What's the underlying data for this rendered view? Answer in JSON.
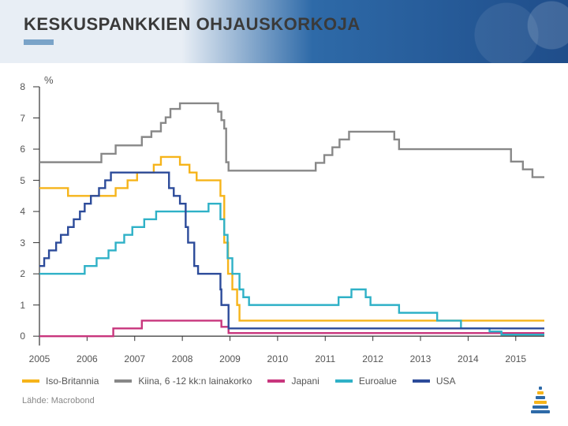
{
  "title": "KESKUSPANKKIEN OHJAUSKORKOJA",
  "accent_color": "#7aa3c8",
  "y_unit": "%",
  "source": "Lähde: Macrobond",
  "chart": {
    "type": "step-line",
    "background_color": "#ffffff",
    "grid_color": "#d7d7d7",
    "axis_color": "#333333",
    "tick_fontsize": 12,
    "label_fontsize": 12,
    "line_width": 2.4,
    "xlim": [
      2005,
      2015.6
    ],
    "ylim": [
      -0.3,
      8
    ],
    "yticks": [
      0,
      1,
      2,
      3,
      4,
      5,
      6,
      7,
      8
    ],
    "xticks": [
      2005,
      2006,
      2007,
      2008,
      2009,
      2010,
      2011,
      2012,
      2013,
      2014,
      2015
    ],
    "series": [
      {
        "name": "Iso-Britannia",
        "color": "#f6b41a",
        "data": [
          [
            2005.0,
            4.75
          ],
          [
            2005.6,
            4.5
          ],
          [
            2006.6,
            4.75
          ],
          [
            2006.85,
            5.0
          ],
          [
            2007.05,
            5.25
          ],
          [
            2007.4,
            5.5
          ],
          [
            2007.55,
            5.75
          ],
          [
            2007.95,
            5.5
          ],
          [
            2008.15,
            5.25
          ],
          [
            2008.3,
            5.0
          ],
          [
            2008.8,
            4.5
          ],
          [
            2008.88,
            3.0
          ],
          [
            2008.96,
            2.0
          ],
          [
            2009.05,
            1.5
          ],
          [
            2009.15,
            1.0
          ],
          [
            2009.2,
            0.5
          ],
          [
            2015.6,
            0.5
          ]
        ]
      },
      {
        "name": "Kiina, 6 -12 kk:n lainakorko",
        "color": "#888888",
        "data": [
          [
            2005.0,
            5.58
          ],
          [
            2006.3,
            5.85
          ],
          [
            2006.6,
            6.12
          ],
          [
            2007.15,
            6.39
          ],
          [
            2007.35,
            6.57
          ],
          [
            2007.55,
            6.84
          ],
          [
            2007.65,
            7.02
          ],
          [
            2007.75,
            7.29
          ],
          [
            2007.95,
            7.47
          ],
          [
            2008.75,
            7.2
          ],
          [
            2008.82,
            6.93
          ],
          [
            2008.88,
            6.66
          ],
          [
            2008.92,
            5.58
          ],
          [
            2008.97,
            5.31
          ],
          [
            2010.8,
            5.56
          ],
          [
            2010.98,
            5.81
          ],
          [
            2011.15,
            6.06
          ],
          [
            2011.3,
            6.31
          ],
          [
            2011.5,
            6.56
          ],
          [
            2012.45,
            6.31
          ],
          [
            2012.55,
            6.0
          ],
          [
            2014.9,
            5.6
          ],
          [
            2015.15,
            5.35
          ],
          [
            2015.35,
            5.1
          ],
          [
            2015.6,
            5.1
          ]
        ]
      },
      {
        "name": "Japani",
        "color": "#c8367d",
        "data": [
          [
            2005.0,
            0.0
          ],
          [
            2006.55,
            0.25
          ],
          [
            2007.15,
            0.5
          ],
          [
            2008.82,
            0.3
          ],
          [
            2008.97,
            0.1
          ],
          [
            2015.6,
            0.1
          ]
        ]
      },
      {
        "name": "Euroalue",
        "color": "#2fb1c7",
        "data": [
          [
            2005.0,
            2.0
          ],
          [
            2005.95,
            2.25
          ],
          [
            2006.2,
            2.5
          ],
          [
            2006.45,
            2.75
          ],
          [
            2006.6,
            3.0
          ],
          [
            2006.78,
            3.25
          ],
          [
            2006.95,
            3.5
          ],
          [
            2007.2,
            3.75
          ],
          [
            2007.45,
            4.0
          ],
          [
            2008.55,
            4.25
          ],
          [
            2008.8,
            3.75
          ],
          [
            2008.88,
            3.25
          ],
          [
            2008.95,
            2.5
          ],
          [
            2009.05,
            2.0
          ],
          [
            2009.2,
            1.5
          ],
          [
            2009.28,
            1.25
          ],
          [
            2009.4,
            1.0
          ],
          [
            2011.28,
            1.25
          ],
          [
            2011.55,
            1.5
          ],
          [
            2011.85,
            1.25
          ],
          [
            2011.95,
            1.0
          ],
          [
            2012.55,
            0.75
          ],
          [
            2013.35,
            0.5
          ],
          [
            2013.85,
            0.25
          ],
          [
            2014.45,
            0.15
          ],
          [
            2014.7,
            0.05
          ],
          [
            2015.6,
            0.05
          ]
        ]
      },
      {
        "name": "USA",
        "color": "#2c4b9a",
        "data": [
          [
            2005.0,
            2.25
          ],
          [
            2005.1,
            2.5
          ],
          [
            2005.2,
            2.75
          ],
          [
            2005.35,
            3.0
          ],
          [
            2005.45,
            3.25
          ],
          [
            2005.6,
            3.5
          ],
          [
            2005.72,
            3.75
          ],
          [
            2005.85,
            4.0
          ],
          [
            2005.95,
            4.25
          ],
          [
            2006.08,
            4.5
          ],
          [
            2006.25,
            4.75
          ],
          [
            2006.38,
            5.0
          ],
          [
            2006.5,
            5.25
          ],
          [
            2007.72,
            4.75
          ],
          [
            2007.82,
            4.5
          ],
          [
            2007.95,
            4.25
          ],
          [
            2008.07,
            3.5
          ],
          [
            2008.12,
            3.0
          ],
          [
            2008.25,
            2.25
          ],
          [
            2008.33,
            2.0
          ],
          [
            2008.8,
            1.5
          ],
          [
            2008.82,
            1.0
          ],
          [
            2008.97,
            0.25
          ],
          [
            2015.6,
            0.25
          ]
        ]
      }
    ],
    "legend": {
      "items": [
        "Iso-Britannia",
        "Kiina, 6 -12 kk:n lainakorko",
        "Japani",
        "Euroalue",
        "USA"
      ],
      "fontsize": 12
    }
  },
  "logo_colors": {
    "base": "#2e6aa8",
    "stripe": "#f6b41a"
  }
}
